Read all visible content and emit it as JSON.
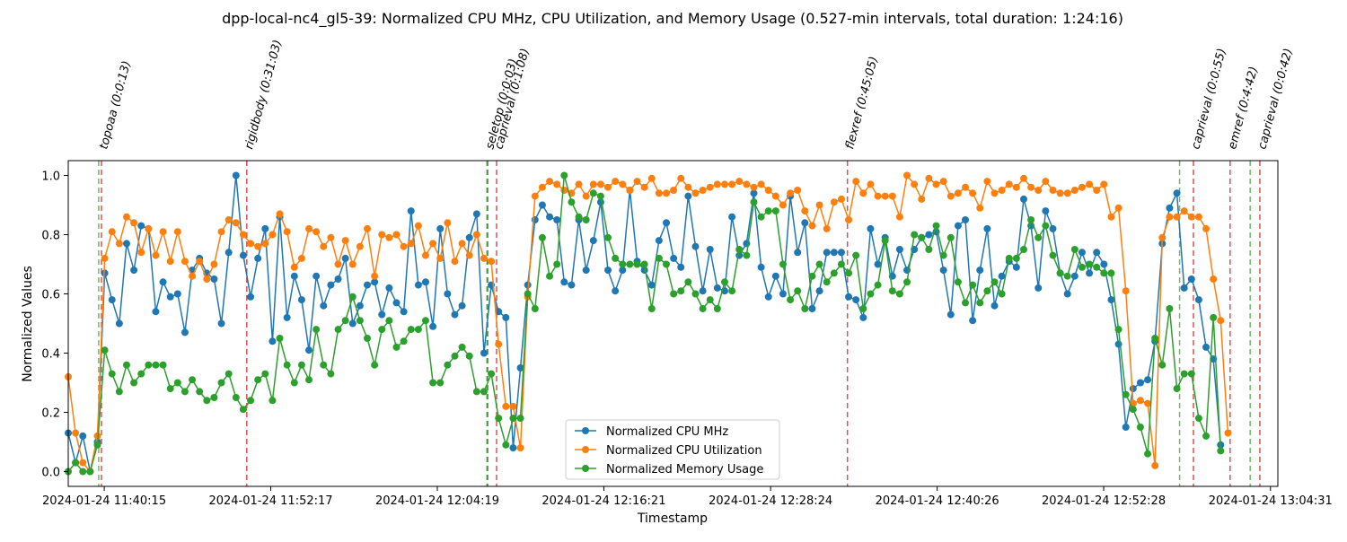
{
  "chart_data": {
    "type": "line",
    "title": "dpp-local-nc4_gl5-39: Normalized CPU MHz, CPU Utilization, and Memory Usage (0.527-min intervals, total duration: 1:24:16)",
    "xlabel": "Timestamp",
    "ylabel": "Normalized Values",
    "xlim_minutes": [
      -2.6,
      84.8
    ],
    "ylim": [
      -0.05,
      1.05
    ],
    "x_ticks": [
      {
        "minute": 0,
        "label": "2024-01-24 11:40:15"
      },
      {
        "minute": 12.033,
        "label": "2024-01-24 11:52:17"
      },
      {
        "minute": 24.067,
        "label": "2024-01-24 12:04:19"
      },
      {
        "minute": 36.1,
        "label": "2024-01-24 12:16:21"
      },
      {
        "minute": 48.15,
        "label": "2024-01-24 12:28:24"
      },
      {
        "minute": 60.183,
        "label": "2024-01-24 12:40:26"
      },
      {
        "minute": 72.217,
        "label": "2024-01-24 12:52:28"
      },
      {
        "minute": 84.267,
        "label": "2024-01-24 13:04:31"
      }
    ],
    "y_ticks": [
      "0.0",
      "0.2",
      "0.4",
      "0.6",
      "0.8",
      "1.0"
    ],
    "y_tick_values": [
      0,
      0.2,
      0.4,
      0.6,
      0.8,
      1.0
    ],
    "grid": false,
    "legend_position": "lower-center",
    "x_start_minute": -2.6,
    "x_step_minutes": 0.527,
    "series": [
      {
        "name": "Normalized CPU MHz",
        "color": "#1f77b4",
        "values": [
          0.13,
          0.03,
          0.12,
          0.0,
          0.1,
          0.67,
          0.58,
          0.5,
          0.77,
          0.68,
          0.83,
          0.82,
          0.54,
          0.64,
          0.59,
          0.6,
          0.47,
          0.68,
          0.72,
          0.67,
          0.65,
          0.5,
          0.74,
          1.0,
          0.73,
          0.59,
          0.72,
          0.82,
          0.44,
          0.86,
          0.52,
          0.66,
          0.58,
          0.41,
          0.66,
          0.56,
          0.63,
          0.65,
          0.72,
          0.5,
          0.56,
          0.63,
          0.64,
          0.53,
          0.62,
          0.57,
          0.54,
          0.88,
          0.63,
          0.64,
          0.49,
          0.82,
          0.6,
          0.53,
          0.56,
          0.79,
          0.87,
          0.4,
          0.63,
          0.54,
          0.52,
          0.08,
          0.35,
          0.63,
          0.85,
          0.9,
          0.86,
          0.85,
          0.64,
          0.63,
          0.85,
          0.68,
          0.78,
          0.91,
          0.68,
          0.61,
          0.68,
          0.95,
          0.71,
          0.68,
          0.63,
          0.78,
          0.84,
          0.72,
          0.69,
          0.93,
          0.76,
          0.61,
          0.75,
          0.62,
          0.61,
          0.86,
          0.73,
          0.77,
          0.94,
          0.69,
          0.59,
          0.66,
          0.6,
          0.93,
          0.74,
          0.84,
          0.55,
          0.61,
          0.74,
          0.74,
          0.74,
          0.59,
          0.58,
          0.52,
          0.82,
          0.7,
          0.79,
          0.66,
          0.75,
          0.68,
          0.75,
          0.79,
          0.8,
          0.81,
          0.68,
          0.53,
          0.83,
          0.85,
          0.51,
          0.68,
          0.82,
          0.56,
          0.66,
          0.71,
          0.69,
          0.92,
          0.83,
          0.62,
          0.88,
          0.82,
          0.67,
          0.6,
          0.66,
          0.74,
          0.67,
          0.74,
          0.7,
          0.58,
          0.43,
          0.15,
          0.28,
          0.3,
          0.31,
          0.44,
          0.77,
          0.89,
          0.94,
          0.62,
          0.65,
          0.58,
          0.42,
          0.38,
          0.09
        ]
      },
      {
        "name": "Normalized CPU Utilization",
        "color": "#ff7f0e",
        "values": [
          0.32,
          0.13,
          0.03,
          0.0,
          0.12,
          0.72,
          0.81,
          0.77,
          0.86,
          0.84,
          0.74,
          0.82,
          0.73,
          0.81,
          0.71,
          0.81,
          0.71,
          0.66,
          0.71,
          0.65,
          0.7,
          0.81,
          0.85,
          0.84,
          0.8,
          0.77,
          0.76,
          0.77,
          0.8,
          0.87,
          0.81,
          0.69,
          0.72,
          0.82,
          0.81,
          0.76,
          0.79,
          0.7,
          0.78,
          0.7,
          0.76,
          0.82,
          0.66,
          0.8,
          0.79,
          0.8,
          0.76,
          0.77,
          0.83,
          0.73,
          0.77,
          0.72,
          0.84,
          0.71,
          0.77,
          0.73,
          0.8,
          0.72,
          0.71,
          0.43,
          0.22,
          0.22,
          0.08,
          0.59,
          0.93,
          0.96,
          0.98,
          0.97,
          0.95,
          0.94,
          0.97,
          0.93,
          0.97,
          0.97,
          0.96,
          0.98,
          0.97,
          0.95,
          0.98,
          0.96,
          0.99,
          0.94,
          0.94,
          0.95,
          0.99,
          0.96,
          0.94,
          0.95,
          0.96,
          0.97,
          0.97,
          0.97,
          0.98,
          0.97,
          0.96,
          0.97,
          0.95,
          0.93,
          0.9,
          0.94,
          0.95,
          0.88,
          0.83,
          0.9,
          0.82,
          0.91,
          0.92,
          0.85,
          0.98,
          0.94,
          0.97,
          0.93,
          0.93,
          0.93,
          0.86,
          1.0,
          0.97,
          0.92,
          0.99,
          0.97,
          0.98,
          0.93,
          0.94,
          0.96,
          0.94,
          0.89,
          0.98,
          0.94,
          0.95,
          0.97,
          0.96,
          0.99,
          0.96,
          0.95,
          0.98,
          0.95,
          0.94,
          0.94,
          0.95,
          0.96,
          0.97,
          0.95,
          0.97,
          0.86,
          0.89,
          0.61,
          0.23,
          0.24,
          0.23,
          0.02,
          0.79,
          0.86,
          0.86,
          0.88,
          0.86,
          0.86,
          0.82,
          0.65,
          0.51,
          0.13
        ]
      },
      {
        "name": "Normalized Memory Usage",
        "color": "#2ca02c",
        "values": [
          0.0,
          0.03,
          0.0,
          0.0,
          0.09,
          0.41,
          0.33,
          0.27,
          0.36,
          0.3,
          0.33,
          0.36,
          0.36,
          0.36,
          0.28,
          0.3,
          0.27,
          0.31,
          0.27,
          0.24,
          0.25,
          0.3,
          0.33,
          0.25,
          0.21,
          0.24,
          0.31,
          0.33,
          0.24,
          0.45,
          0.36,
          0.3,
          0.36,
          0.31,
          0.48,
          0.36,
          0.33,
          0.48,
          0.51,
          0.59,
          0.51,
          0.45,
          0.36,
          0.48,
          0.51,
          0.42,
          0.44,
          0.48,
          0.48,
          0.51,
          0.3,
          0.3,
          0.36,
          0.39,
          0.42,
          0.39,
          0.27,
          0.27,
          0.33,
          0.18,
          0.09,
          0.18,
          0.18,
          0.6,
          0.55,
          0.79,
          0.66,
          0.7,
          1.0,
          0.91,
          0.86,
          0.85,
          0.94,
          0.93,
          0.79,
          0.72,
          0.7,
          0.7,
          0.7,
          0.7,
          0.55,
          0.72,
          0.7,
          0.6,
          0.61,
          0.64,
          0.6,
          0.55,
          0.58,
          0.55,
          0.64,
          0.61,
          0.75,
          0.73,
          0.91,
          0.86,
          0.88,
          0.88,
          0.7,
          0.58,
          0.61,
          0.55,
          0.66,
          0.7,
          0.64,
          0.67,
          0.7,
          0.67,
          0.73,
          0.55,
          0.6,
          0.63,
          0.78,
          0.61,
          0.6,
          0.64,
          0.8,
          0.79,
          0.75,
          0.83,
          0.73,
          0.79,
          0.64,
          0.57,
          0.63,
          0.57,
          0.61,
          0.64,
          0.6,
          0.72,
          0.72,
          0.75,
          0.85,
          0.79,
          0.83,
          0.73,
          0.67,
          0.66,
          0.75,
          0.69,
          0.7,
          0.69,
          0.67,
          0.67,
          0.48,
          0.26,
          0.21,
          0.15,
          0.06,
          0.45,
          0.36,
          0.55,
          0.28,
          0.33,
          0.33,
          0.18,
          0.12,
          0.52,
          0.07
        ]
      }
    ],
    "events": [
      {
        "label": "topoaa (0:0:13)",
        "start_minute": -0.4,
        "end_minute": -0.2
      },
      {
        "label": "rigidbody (0:31:03)",
        "end_minute": 10.3
      },
      {
        "label": "seletop (0:0:03)",
        "start_minute": 27.65,
        "end_minute": 27.7
      },
      {
        "label": "caprieval (0:1:08)",
        "start_minute": 27.7,
        "end_minute": 28.35
      },
      {
        "label": "flexref (0:45:05)",
        "end_minute": 53.7
      },
      {
        "label": "caprieval (0:0:55)",
        "start_minute": 77.7,
        "end_minute": 78.7
      },
      {
        "label": "emref (0:4:42)",
        "end_minute": 81.35
      },
      {
        "label": "caprieval (0:0:42)",
        "start_minute": 82.8,
        "end_minute": 83.5
      }
    ],
    "event_line_colors": {
      "end": "#d62728",
      "start": "#2ca02c"
    }
  }
}
